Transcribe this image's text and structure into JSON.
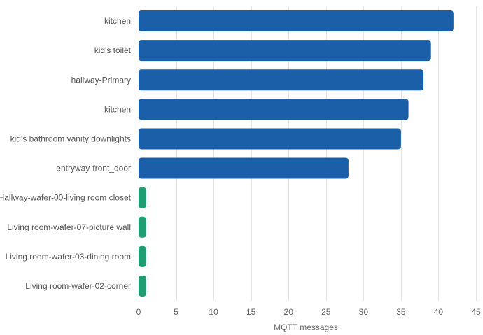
{
  "chart_data": {
    "type": "bar",
    "orientation": "horizontal",
    "title": "",
    "xlabel": "MQTT messages",
    "ylabel": "",
    "xlim": [
      0,
      45
    ],
    "xticks": [
      0,
      5,
      10,
      15,
      20,
      25,
      30,
      35,
      40,
      45
    ],
    "grid": true,
    "categories": [
      "kitchen",
      "kid's toilet",
      "hallway-Primary",
      "kitchen",
      "kid's bathroom vanity downlights",
      "entryway-front_door",
      "Hallway-wafer-00-living room closet",
      "Living room-wafer-07-picture wall",
      "Living room-wafer-03-dining room",
      "Living room-wafer-02-corner"
    ],
    "values": [
      42,
      39,
      38,
      36,
      35,
      28,
      1,
      1,
      1,
      1
    ],
    "colors": [
      "#1a5fa8",
      "#1a5fa8",
      "#1a5fa8",
      "#1a5fa8",
      "#1a5fa8",
      "#1a5fa8",
      "#1f9e74",
      "#1f9e74",
      "#1f9e74",
      "#1f9e74"
    ]
  }
}
